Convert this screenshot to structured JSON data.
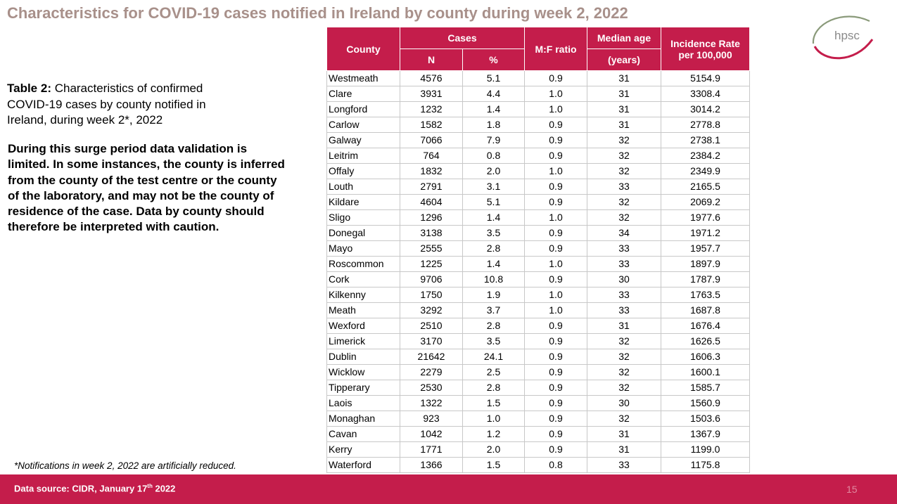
{
  "title": "Characteristics for COVID-19 cases notified in Ireland by county during week 2, 2022",
  "logo_text": "hpsc",
  "caption": {
    "label": "Table 2:",
    "text": " Characteristics of confirmed COVID-19 cases by county notified in Ireland, during week 2*, 2022"
  },
  "note": "During this surge period data validation is limited. In some instances, the county is inferred from the county of the test centre or the county of the laboratory, and may not be the county of residence of the case. Data by county should therefore be interpreted with caution.",
  "footnote": "*Notifications in week 2, 2022 are artificially reduced.",
  "table": {
    "headers": {
      "county": "County",
      "cases": "Cases",
      "n": "N",
      "pct": "%",
      "mf": "M:F ratio",
      "median_age_line1": "Median age",
      "median_age_line2": "(years)",
      "incidence_line1": "Incidence Rate",
      "incidence_line2": "per 100,000"
    },
    "rows": [
      [
        "Westmeath",
        "4576",
        "5.1",
        "0.9",
        "31",
        "5154.9"
      ],
      [
        "Clare",
        "3931",
        "4.4",
        "1.0",
        "31",
        "3308.4"
      ],
      [
        "Longford",
        "1232",
        "1.4",
        "1.0",
        "31",
        "3014.2"
      ],
      [
        "Carlow",
        "1582",
        "1.8",
        "0.9",
        "31",
        "2778.8"
      ],
      [
        "Galway",
        "7066",
        "7.9",
        "0.9",
        "32",
        "2738.1"
      ],
      [
        "Leitrim",
        "764",
        "0.8",
        "0.9",
        "32",
        "2384.2"
      ],
      [
        "Offaly",
        "1832",
        "2.0",
        "1.0",
        "32",
        "2349.9"
      ],
      [
        "Louth",
        "2791",
        "3.1",
        "0.9",
        "33",
        "2165.5"
      ],
      [
        "Kildare",
        "4604",
        "5.1",
        "0.9",
        "32",
        "2069.2"
      ],
      [
        "Sligo",
        "1296",
        "1.4",
        "1.0",
        "32",
        "1977.6"
      ],
      [
        "Donegal",
        "3138",
        "3.5",
        "0.9",
        "34",
        "1971.2"
      ],
      [
        "Mayo",
        "2555",
        "2.8",
        "0.9",
        "33",
        "1957.7"
      ],
      [
        "Roscommon",
        "1225",
        "1.4",
        "1.0",
        "33",
        "1897.9"
      ],
      [
        "Cork",
        "9706",
        "10.8",
        "0.9",
        "30",
        "1787.9"
      ],
      [
        "Kilkenny",
        "1750",
        "1.9",
        "1.0",
        "33",
        "1763.5"
      ],
      [
        "Meath",
        "3292",
        "3.7",
        "1.0",
        "33",
        "1687.8"
      ],
      [
        "Wexford",
        "2510",
        "2.8",
        "0.9",
        "31",
        "1676.4"
      ],
      [
        "Limerick",
        "3170",
        "3.5",
        "0.9",
        "32",
        "1626.5"
      ],
      [
        "Dublin",
        "21642",
        "24.1",
        "0.9",
        "32",
        "1606.3"
      ],
      [
        "Wicklow",
        "2279",
        "2.5",
        "0.9",
        "32",
        "1600.1"
      ],
      [
        "Tipperary",
        "2530",
        "2.8",
        "0.9",
        "32",
        "1585.7"
      ],
      [
        "Laois",
        "1322",
        "1.5",
        "0.9",
        "30",
        "1560.9"
      ],
      [
        "Monaghan",
        "923",
        "1.0",
        "0.9",
        "32",
        "1503.6"
      ],
      [
        "Cavan",
        "1042",
        "1.2",
        "0.9",
        "31",
        "1367.9"
      ],
      [
        "Kerry",
        "1771",
        "2.0",
        "0.9",
        "31",
        "1199.0"
      ],
      [
        "Waterford",
        "1366",
        "1.5",
        "0.8",
        "33",
        "1175.8"
      ]
    ]
  },
  "data_source": {
    "prefix": "Data source: CIDR, January 17",
    "sup": "th",
    "suffix": " 2022"
  },
  "page_number": "15",
  "colors": {
    "header_bg": "#c41d4b",
    "title": "#a8908a",
    "bar": "#c41d4b"
  }
}
